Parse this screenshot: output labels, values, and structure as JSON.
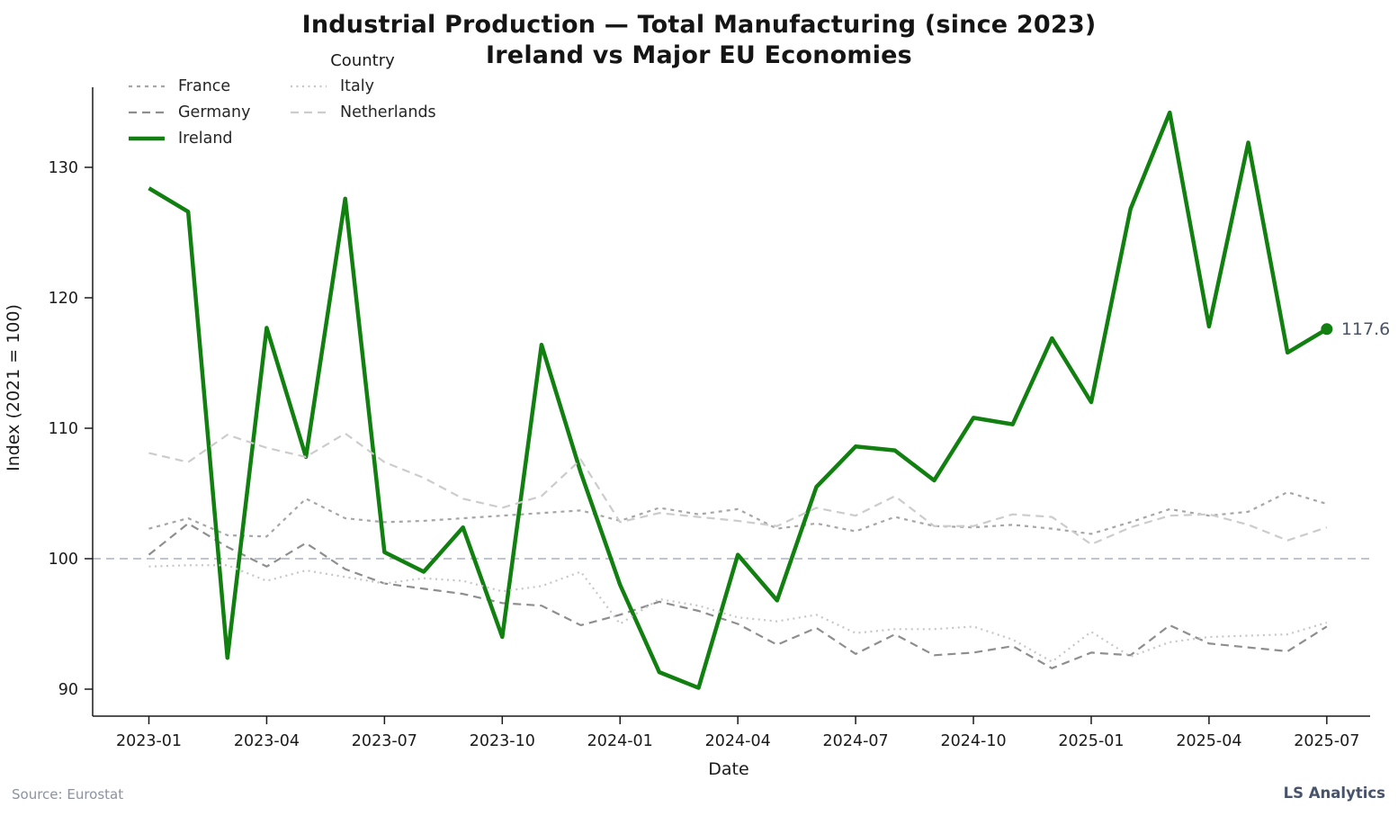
{
  "title": {
    "line1": "Industrial Production — Total Manufacturing (since 2023)",
    "line2": "Ireland vs Major EU Economies"
  },
  "legend": {
    "title": "Country",
    "order": [
      "France",
      "Germany",
      "Ireland",
      "Italy",
      "Netherlands"
    ]
  },
  "axes": {
    "ylabel": "Index (2021 = 100)",
    "xlabel": "Date",
    "yticks": [
      90,
      100,
      110,
      120,
      130
    ],
    "reference_line": 100,
    "reference_color": "#aab2bf"
  },
  "annotation": {
    "text": "117.6",
    "color": "#4a5568"
  },
  "footer": {
    "source": "Source: Eurostat",
    "brand": "LS Analytics"
  },
  "chart_data": {
    "type": "line",
    "title": "Industrial Production — Total Manufacturing (since 2023) — Ireland vs Major EU Economies",
    "xlabel": "Date",
    "ylabel": "Index (2021 = 100)",
    "ylim": [
      87.9,
      136.2
    ],
    "grid": false,
    "legend_position": "upper-left",
    "x": [
      "2023-01",
      "2023-02",
      "2023-03",
      "2023-04",
      "2023-05",
      "2023-06",
      "2023-07",
      "2023-08",
      "2023-09",
      "2023-10",
      "2023-11",
      "2023-12",
      "2024-01",
      "2024-02",
      "2024-03",
      "2024-04",
      "2024-05",
      "2024-06",
      "2024-07",
      "2024-08",
      "2024-09",
      "2024-10",
      "2024-11",
      "2024-12",
      "2025-01",
      "2025-02",
      "2025-03",
      "2025-04",
      "2025-05",
      "2025-06",
      "2025-07"
    ],
    "xtick_labels": [
      "2023-01",
      "2023-04",
      "2023-07",
      "2023-10",
      "2024-01",
      "2024-04",
      "2024-07",
      "2024-10",
      "2025-01",
      "2025-04",
      "2025-07"
    ],
    "xtick_every": 3,
    "series": [
      {
        "name": "France",
        "color": "#a6a6a6",
        "dash": "4 5",
        "width": 2.2,
        "end_dot": false,
        "values": [
          102.3,
          103.1,
          101.8,
          101.7,
          104.6,
          103.1,
          102.8,
          102.9,
          103.1,
          103.3,
          103.5,
          103.7,
          102.9,
          103.9,
          103.4,
          103.8,
          102.3,
          102.7,
          102.1,
          103.2,
          102.5,
          102.4,
          102.6,
          102.3,
          101.9,
          102.8,
          103.8,
          103.3,
          103.6,
          105.1,
          104.2
        ]
      },
      {
        "name": "Germany",
        "color": "#8e8e8e",
        "dash": "9 6",
        "width": 2.2,
        "end_dot": false,
        "values": [
          100.3,
          102.7,
          100.9,
          99.4,
          101.2,
          99.2,
          98.1,
          97.7,
          97.3,
          96.6,
          96.4,
          94.9,
          95.7,
          96.7,
          96.0,
          95.0,
          93.4,
          94.7,
          92.7,
          94.2,
          92.6,
          92.8,
          93.3,
          91.6,
          92.8,
          92.6,
          94.9,
          93.5,
          93.2,
          92.9,
          94.8
        ]
      },
      {
        "name": "Ireland",
        "color": "#118011",
        "dash": "",
        "width": 4.5,
        "end_dot": true,
        "values": [
          128.4,
          126.6,
          92.4,
          117.7,
          107.8,
          127.6,
          100.5,
          99.0,
          102.4,
          94.0,
          116.4,
          106.6,
          98.0,
          91.3,
          90.1,
          100.3,
          96.8,
          105.5,
          108.6,
          108.3,
          106.0,
          110.8,
          110.3,
          116.9,
          112.0,
          126.8,
          134.2,
          117.8,
          131.9,
          115.8,
          117.6
        ]
      },
      {
        "name": "Italy",
        "color": "#c6c6c6",
        "dash": "2 4.5",
        "width": 2.2,
        "end_dot": false,
        "values": [
          99.4,
          99.5,
          99.5,
          98.3,
          99.1,
          98.6,
          98.1,
          98.5,
          98.3,
          97.5,
          97.9,
          99.0,
          95.0,
          96.9,
          96.4,
          95.5,
          95.2,
          95.7,
          94.3,
          94.6,
          94.6,
          94.8,
          93.8,
          92.1,
          94.4,
          92.5,
          93.6,
          94.0,
          94.1,
          94.2,
          95.1
        ]
      },
      {
        "name": "Netherlands",
        "color": "#cccccc",
        "dash": "9 6",
        "width": 2.2,
        "end_dot": false,
        "values": [
          108.1,
          107.4,
          109.5,
          108.5,
          107.8,
          109.6,
          107.4,
          106.2,
          104.6,
          103.9,
          104.8,
          107.6,
          102.8,
          103.5,
          103.2,
          102.9,
          102.5,
          103.9,
          103.3,
          104.8,
          102.5,
          102.5,
          103.4,
          103.2,
          101.1,
          102.4,
          103.3,
          103.4,
          102.6,
          101.4,
          102.4
        ]
      }
    ],
    "annotation": {
      "series": "Ireland",
      "x": "2025-07",
      "value": 117.6,
      "label": "117.6"
    }
  }
}
